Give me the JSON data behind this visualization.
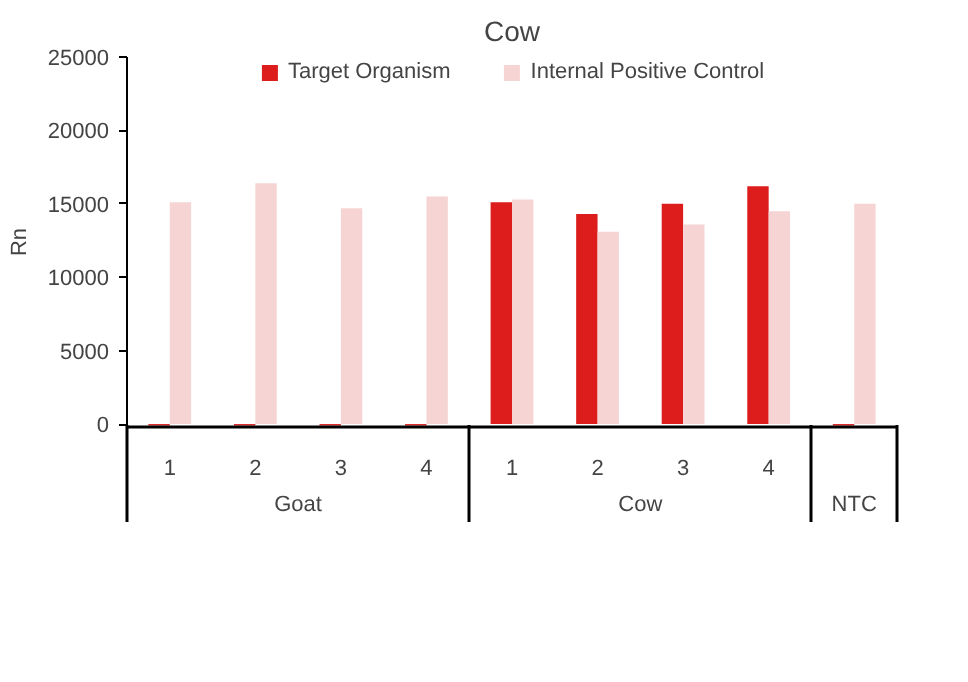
{
  "chart_data": {
    "type": "bar",
    "title": "Cow",
    "ylabel": "Rn",
    "categories": [
      "1",
      "2",
      "3",
      "4",
      "1",
      "2",
      "3",
      "4",
      null
    ],
    "annotations": [
      "Goat",
      "Cow",
      "NTC"
    ],
    "series": [
      {
        "name": "Target Organism",
        "color": "#dd1c1c",
        "values": [
          -100,
          -100,
          -100,
          -100,
          15100,
          14300,
          15000,
          16200,
          -100
        ]
      },
      {
        "name": "Internal Positive Control",
        "color": "#f6d4d4",
        "values": [
          15100,
          16400,
          14700,
          15500,
          15300,
          13100,
          13600,
          14500,
          15000
        ]
      }
    ],
    "ylim": [
      -200,
      25000
    ],
    "yticks": [
      0,
      5000,
      10000,
      15000,
      20000,
      25000
    ],
    "grid": false,
    "legend": "top"
  }
}
